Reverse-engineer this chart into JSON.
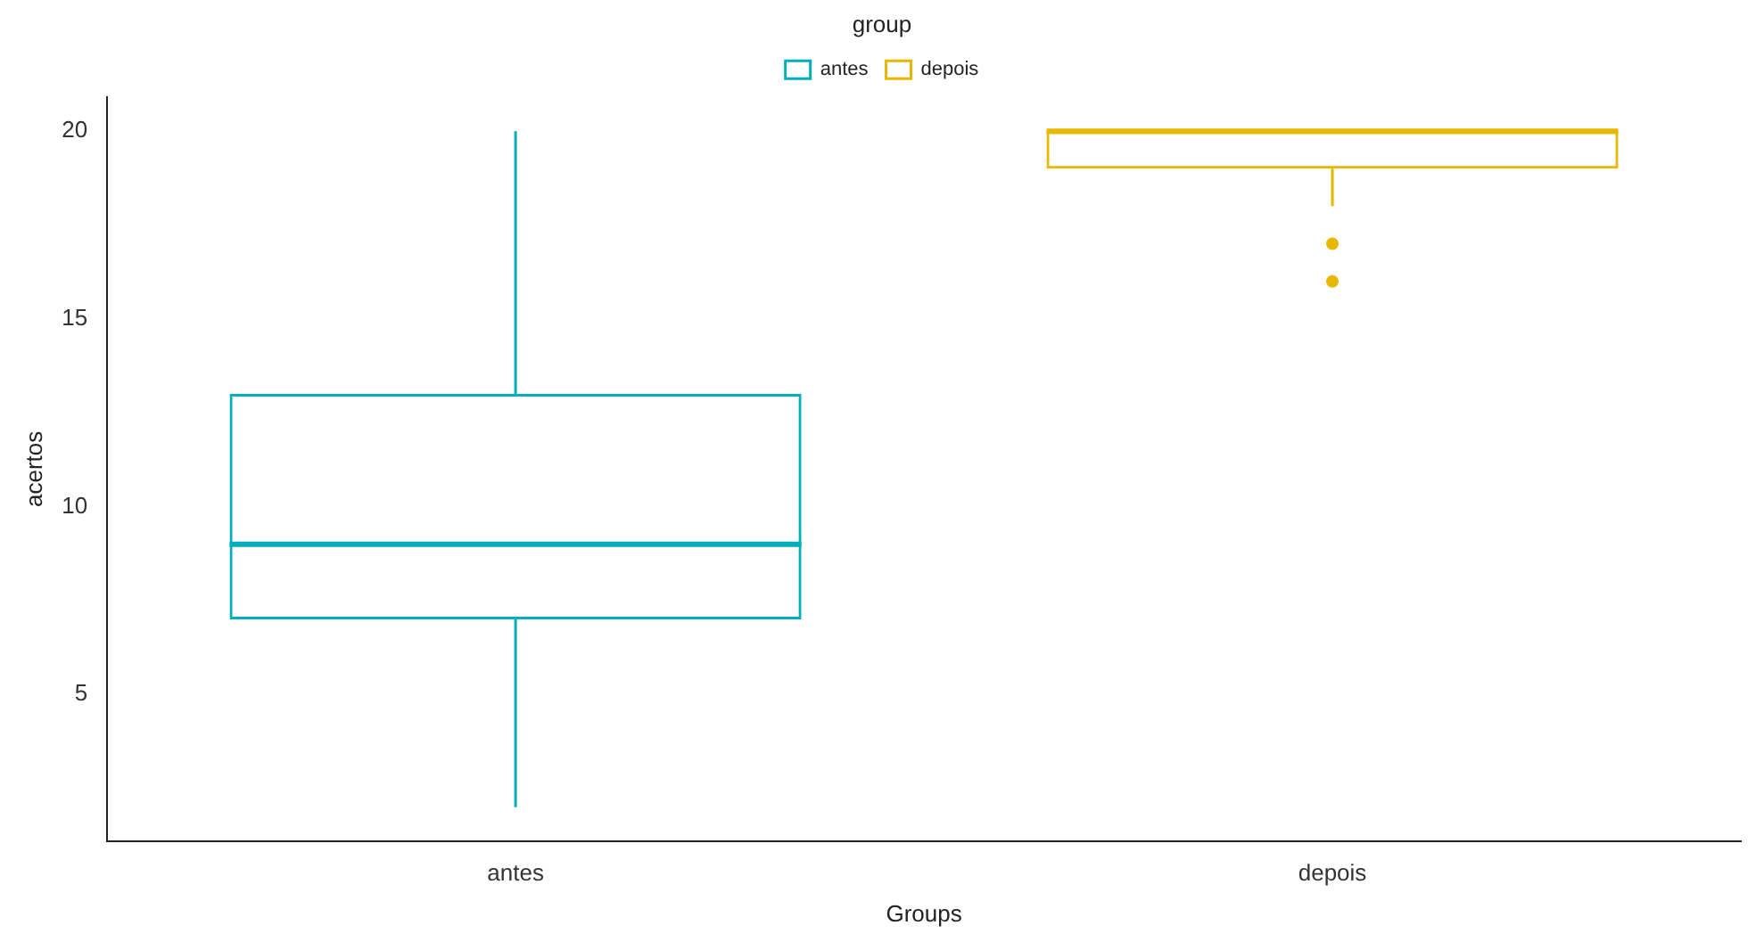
{
  "chart_data": {
    "type": "box",
    "xlabel": "Groups",
    "ylabel": "acertos",
    "legend_title": "group",
    "legend": "top",
    "grid": false,
    "categories": [
      "antes",
      "depois"
    ],
    "series": [
      {
        "name": "antes",
        "color": "#00afbb",
        "boxes": [
          {
            "low": 2,
            "q1": 7,
            "median": 9,
            "q3": 13,
            "high": 20
          },
          null
        ]
      },
      {
        "name": "depois",
        "color": "#e7b800",
        "boxes": [
          null,
          {
            "low": 18,
            "q1": 19,
            "median": 20,
            "q3": 20,
            "high": 20,
            "outliers": [
              17,
              16
            ]
          }
        ]
      }
    ],
    "ylim": [
      1.1,
      20.9
    ],
    "yticks": [
      5,
      10,
      15,
      20
    ]
  }
}
